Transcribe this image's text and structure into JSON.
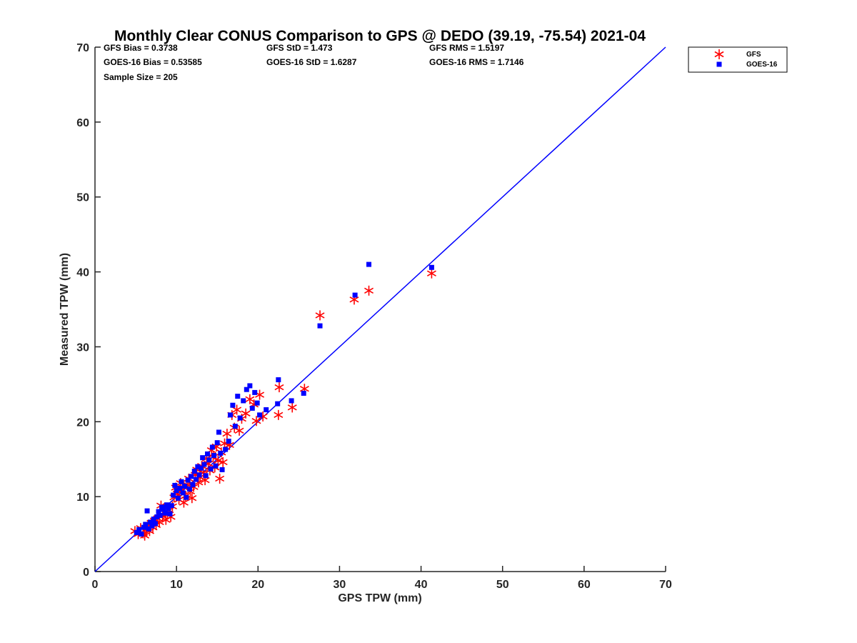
{
  "chart_data": {
    "type": "scatter",
    "title": "Monthly Clear CONUS Comparison to GPS @ DEDO (39.19, -75.54) 2021-04",
    "xlabel": "GPS TPW (mm)",
    "ylabel": "Measured TPW (mm)",
    "xlim": [
      0,
      70
    ],
    "ylim": [
      0,
      70
    ],
    "xticks": [
      "0",
      "10",
      "20",
      "30",
      "40",
      "50",
      "60",
      "70"
    ],
    "yticks": [
      "0",
      "10",
      "20",
      "30",
      "40",
      "50",
      "60",
      "70"
    ],
    "grid": false,
    "legend_position": "top-right (outside plot)",
    "stats": [
      [
        "GFS Bias = 0.3738",
        "GFS StD = 1.473",
        "GFS RMS = 1.5197"
      ],
      [
        "GOES-16 Bias = 0.53585",
        "GOES-16 StD = 1.6287",
        "GOES-16 RMS = 1.7146"
      ],
      [
        "Sample Size = 205"
      ]
    ],
    "reference_line": {
      "x": [
        0,
        70
      ],
      "y": [
        0,
        70
      ],
      "color": "#0000ff"
    },
    "series": [
      {
        "name": "GFS",
        "marker": "asterisk",
        "color": "#ff0000",
        "points": [
          [
            4.9,
            5.4
          ],
          [
            5.3,
            5.0
          ],
          [
            5.6,
            5.8
          ],
          [
            5.9,
            5.1
          ],
          [
            6.1,
            4.8
          ],
          [
            6.3,
            5.6
          ],
          [
            6.5,
            6.2
          ],
          [
            6.7,
            5.4
          ],
          [
            6.9,
            6.5
          ],
          [
            7.1,
            5.9
          ],
          [
            7.3,
            6.8
          ],
          [
            7.5,
            6.2
          ],
          [
            7.7,
            7.1
          ],
          [
            7.9,
            6.6
          ],
          [
            8.1,
            8.8
          ],
          [
            8.3,
            7.4
          ],
          [
            8.5,
            7.9
          ],
          [
            8.7,
            6.9
          ],
          [
            8.9,
            7.6
          ],
          [
            9.1,
            8.2
          ],
          [
            9.3,
            7.3
          ],
          [
            9.5,
            8.7
          ],
          [
            9.7,
            9.9
          ],
          [
            9.9,
            11.2
          ],
          [
            10.1,
            10.4
          ],
          [
            10.3,
            9.6
          ],
          [
            10.5,
            11.8
          ],
          [
            10.7,
            10.9
          ],
          [
            10.9,
            9.2
          ],
          [
            11.1,
            10.1
          ],
          [
            11.3,
            11.6
          ],
          [
            11.5,
            12.4
          ],
          [
            11.7,
            10.7
          ],
          [
            11.9,
            9.8
          ],
          [
            12.1,
            11.3
          ],
          [
            12.3,
            12.9
          ],
          [
            12.5,
            13.6
          ],
          [
            12.7,
            11.9
          ],
          [
            12.9,
            12.6
          ],
          [
            13.1,
            14.1
          ],
          [
            13.3,
            13.2
          ],
          [
            13.5,
            12.2
          ],
          [
            13.7,
            15.1
          ],
          [
            13.9,
            14.4
          ],
          [
            14.1,
            13.5
          ],
          [
            14.3,
            16.2
          ],
          [
            14.5,
            15.3
          ],
          [
            14.7,
            13.9
          ],
          [
            14.9,
            16.7
          ],
          [
            15.1,
            14.8
          ],
          [
            15.3,
            12.4
          ],
          [
            15.5,
            15.9
          ],
          [
            15.7,
            14.6
          ],
          [
            15.9,
            17.1
          ],
          [
            16.2,
            18.4
          ],
          [
            16.5,
            16.9
          ],
          [
            16.8,
            20.9
          ],
          [
            17.1,
            19.2
          ],
          [
            17.4,
            21.6
          ],
          [
            17.7,
            18.8
          ],
          [
            18.0,
            20.4
          ],
          [
            18.5,
            21.1
          ],
          [
            19.0,
            23.0
          ],
          [
            19.5,
            22.3
          ],
          [
            19.8,
            20.1
          ],
          [
            20.2,
            23.6
          ],
          [
            20.6,
            20.7
          ],
          [
            22.5,
            20.9
          ],
          [
            22.6,
            24.6
          ],
          [
            24.2,
            21.9
          ],
          [
            25.7,
            24.4
          ],
          [
            27.6,
            34.2
          ],
          [
            31.8,
            36.3
          ],
          [
            33.6,
            37.5
          ],
          [
            41.3,
            39.8
          ]
        ]
      },
      {
        "name": "GOES-16",
        "marker": "square",
        "color": "#0000ff",
        "points": [
          [
            5.1,
            5.2
          ],
          [
            5.4,
            5.6
          ],
          [
            5.7,
            5.0
          ],
          [
            6.0,
            5.9
          ],
          [
            6.2,
            6.3
          ],
          [
            6.4,
            8.1
          ],
          [
            6.6,
            5.7
          ],
          [
            6.8,
            6.6
          ],
          [
            7.0,
            6.1
          ],
          [
            7.2,
            7.0
          ],
          [
            7.4,
            6.4
          ],
          [
            7.6,
            7.3
          ],
          [
            7.8,
            8.0
          ],
          [
            8.0,
            7.5
          ],
          [
            8.2,
            8.6
          ],
          [
            8.4,
            8.3
          ],
          [
            8.6,
            7.8
          ],
          [
            8.8,
            8.9
          ],
          [
            9.0,
            8.4
          ],
          [
            9.2,
            7.7
          ],
          [
            9.4,
            8.8
          ],
          [
            9.6,
            10.2
          ],
          [
            9.8,
            11.5
          ],
          [
            10.0,
            10.8
          ],
          [
            10.2,
            9.8
          ],
          [
            10.4,
            11.1
          ],
          [
            10.6,
            12.0
          ],
          [
            10.8,
            10.5
          ],
          [
            11.0,
            11.4
          ],
          [
            11.2,
            9.9
          ],
          [
            11.4,
            12.2
          ],
          [
            11.6,
            11.0
          ],
          [
            11.8,
            12.7
          ],
          [
            12.0,
            11.6
          ],
          [
            12.2,
            13.4
          ],
          [
            12.4,
            12.3
          ],
          [
            12.6,
            14.0
          ],
          [
            12.8,
            12.9
          ],
          [
            13.0,
            13.8
          ],
          [
            13.2,
            15.2
          ],
          [
            13.4,
            14.3
          ],
          [
            13.6,
            12.8
          ],
          [
            13.8,
            15.7
          ],
          [
            14.0,
            14.9
          ],
          [
            14.2,
            13.7
          ],
          [
            14.4,
            16.6
          ],
          [
            14.6,
            15.5
          ],
          [
            14.8,
            14.1
          ],
          [
            15.0,
            17.2
          ],
          [
            15.2,
            18.6
          ],
          [
            15.4,
            15.8
          ],
          [
            15.6,
            13.6
          ],
          [
            16.0,
            16.3
          ],
          [
            16.4,
            17.4
          ],
          [
            16.6,
            20.9
          ],
          [
            16.9,
            22.2
          ],
          [
            17.2,
            19.4
          ],
          [
            17.5,
            23.4
          ],
          [
            17.8,
            20.5
          ],
          [
            18.2,
            22.8
          ],
          [
            18.6,
            24.3
          ],
          [
            19.0,
            24.8
          ],
          [
            19.3,
            21.8
          ],
          [
            19.6,
            23.9
          ],
          [
            19.9,
            22.5
          ],
          [
            20.2,
            20.9
          ],
          [
            21.0,
            21.6
          ],
          [
            22.4,
            22.4
          ],
          [
            22.5,
            25.6
          ],
          [
            24.1,
            22.8
          ],
          [
            25.6,
            23.8
          ],
          [
            27.6,
            32.8
          ],
          [
            31.9,
            36.9
          ],
          [
            33.6,
            41.0
          ],
          [
            41.3,
            40.6
          ]
        ]
      }
    ]
  }
}
